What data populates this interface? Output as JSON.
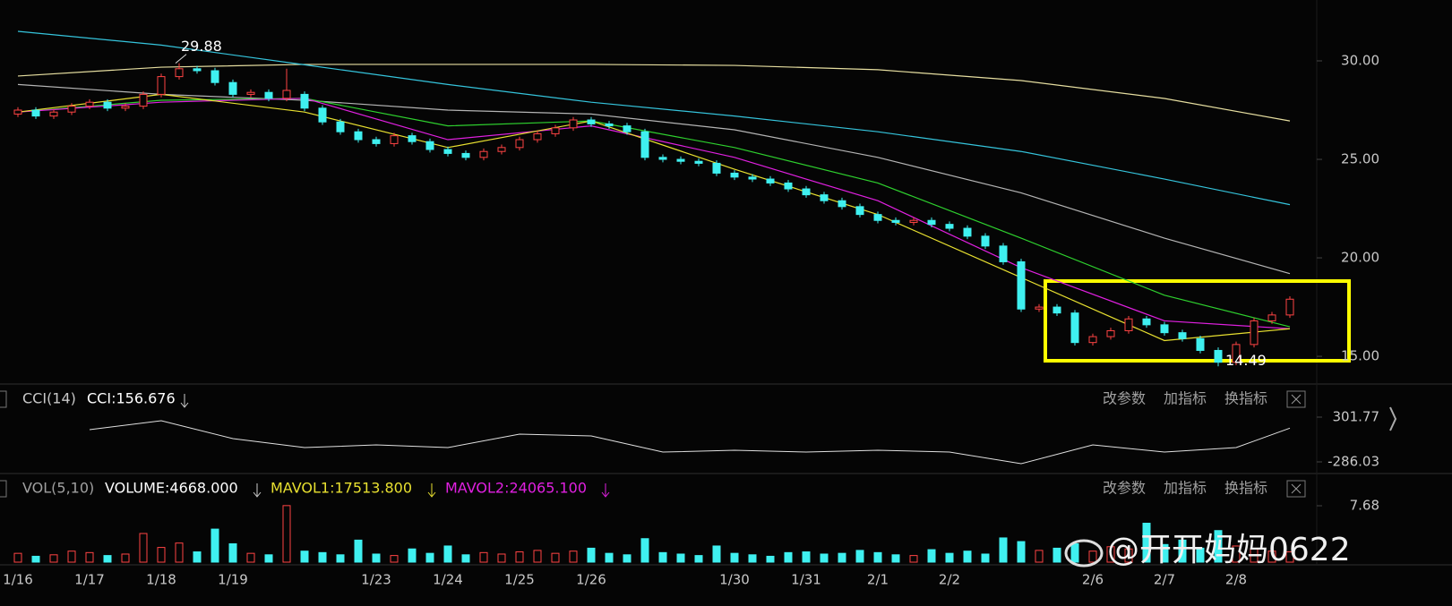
{
  "chart_data": {
    "type": "candlestick",
    "categories": [
      "1/16",
      null,
      null,
      null,
      "1/17",
      null,
      null,
      null,
      "1/18",
      null,
      null,
      null,
      "1/19",
      null,
      null,
      null,
      null,
      null,
      null,
      null,
      "1/23",
      null,
      null,
      null,
      "1/24",
      null,
      null,
      null,
      "1/25",
      null,
      null,
      null,
      "1/26",
      null,
      null,
      null,
      null,
      null,
      null,
      null,
      "1/30",
      null,
      null,
      null,
      "1/31",
      null,
      null,
      null,
      "2/1",
      null,
      null,
      null,
      "2/2",
      null,
      null,
      null,
      null,
      null,
      null,
      null,
      "2/6",
      null,
      null,
      null,
      "2/7",
      null,
      null,
      null,
      "2/8",
      null,
      null,
      null
    ],
    "open": [
      27.3,
      27.5,
      27.2,
      27.4,
      27.7,
      27.9,
      27.6,
      27.7,
      28.3,
      29.2,
      29.6,
      29.5,
      28.9,
      28.3,
      28.4,
      28.1,
      28.3,
      27.6,
      26.9,
      26.4,
      26.0,
      25.8,
      26.2,
      25.9,
      25.5,
      25.3,
      25.1,
      25.4,
      25.6,
      26.0,
      26.3,
      26.6,
      27.0,
      26.8,
      26.7,
      26.4,
      25.1,
      25.0,
      24.9,
      24.8,
      24.3,
      24.1,
      24.0,
      23.8,
      23.5,
      23.2,
      22.9,
      22.6,
      22.2,
      21.9,
      21.8,
      21.9,
      21.7,
      21.5,
      21.1,
      20.6,
      19.8,
      17.4,
      17.5,
      17.2,
      15.7,
      16.0,
      16.3,
      16.9,
      16.6,
      16.2,
      15.9,
      15.3,
      14.7,
      15.6,
      16.8,
      17.1
    ],
    "close": [
      27.5,
      27.2,
      27.4,
      27.7,
      27.9,
      27.6,
      27.7,
      28.3,
      29.2,
      29.6,
      29.5,
      28.9,
      28.3,
      28.4,
      28.1,
      28.5,
      27.6,
      26.9,
      26.4,
      26.0,
      25.8,
      26.2,
      25.9,
      25.5,
      25.3,
      25.1,
      25.4,
      25.6,
      26.0,
      26.3,
      26.6,
      27.0,
      26.8,
      26.7,
      26.4,
      25.1,
      25.0,
      24.9,
      24.8,
      24.3,
      24.1,
      24.0,
      23.8,
      23.5,
      23.2,
      22.9,
      22.6,
      22.2,
      21.9,
      21.8,
      21.9,
      21.7,
      21.5,
      21.1,
      20.6,
      19.8,
      17.4,
      17.5,
      17.2,
      15.7,
      16.0,
      16.3,
      16.9,
      16.6,
      16.2,
      15.9,
      15.3,
      14.7,
      15.6,
      16.8,
      17.1,
      17.9
    ],
    "high": [
      27.65,
      27.65,
      27.55,
      27.85,
      28.05,
      28.05,
      27.85,
      28.45,
      29.35,
      29.88,
      29.75,
      29.65,
      29.05,
      28.55,
      28.55,
      29.6,
      28.45,
      27.75,
      27.05,
      26.55,
      26.15,
      26.35,
      26.35,
      26.05,
      25.65,
      25.45,
      25.55,
      25.75,
      26.15,
      26.45,
      26.75,
      27.15,
      27.15,
      26.95,
      26.85,
      26.55,
      25.25,
      25.15,
      25.05,
      24.95,
      24.45,
      24.25,
      24.15,
      23.95,
      23.65,
      23.35,
      23.05,
      22.75,
      22.35,
      22.05,
      22.05,
      22.05,
      21.85,
      21.65,
      21.25,
      20.75,
      19.95,
      17.65,
      17.65,
      17.35,
      16.15,
      16.45,
      17.05,
      17.05,
      16.75,
      16.35,
      16.05,
      15.45,
      15.75,
      16.95,
      17.25,
      18.05
    ],
    "low": [
      27.15,
      27.05,
      27.05,
      27.25,
      27.55,
      27.45,
      27.45,
      27.55,
      28.15,
      29.05,
      29.35,
      28.75,
      28.15,
      28.15,
      27.95,
      27.95,
      27.45,
      26.75,
      26.25,
      25.85,
      25.65,
      25.65,
      25.75,
      25.35,
      25.15,
      24.95,
      24.95,
      25.25,
      25.45,
      25.85,
      26.15,
      26.45,
      26.65,
      26.55,
      26.25,
      24.95,
      24.85,
      24.75,
      24.65,
      24.15,
      23.95,
      23.85,
      23.65,
      23.35,
      23.05,
      22.75,
      22.45,
      22.05,
      21.75,
      21.65,
      21.65,
      21.55,
      21.35,
      20.95,
      20.45,
      19.65,
      17.25,
      17.25,
      17.05,
      15.55,
      15.55,
      15.85,
      16.15,
      16.45,
      16.05,
      15.75,
      15.15,
      14.49,
      14.55,
      15.45,
      16.65,
      16.95
    ],
    "up_color": "#ff4444",
    "down_color": "#3ff0f0",
    "ylim": [
      13.64,
      33.09
    ],
    "yticks": [
      {
        "value": 15,
        "label": "15.00"
      },
      {
        "value": 20,
        "label": "20.00"
      },
      {
        "value": 25,
        "label": "25.00"
      },
      {
        "value": 30,
        "label": "30.00"
      }
    ],
    "ma_index": [
      0,
      8,
      16,
      24,
      32,
      40,
      48,
      56,
      64,
      71
    ],
    "ma_series": [
      {
        "color": "#e6dea0",
        "values": [
          29.23,
          29.68,
          29.82,
          29.82,
          29.82,
          29.77,
          29.55,
          29.0,
          28.09,
          26.95
        ]
      },
      {
        "color": "#35c4dc",
        "values": [
          31.5,
          30.8,
          29.8,
          28.8,
          27.9,
          27.2,
          26.4,
          25.4,
          24.0,
          22.7
        ]
      },
      {
        "color": "#b4b4b4",
        "values": [
          28.8,
          28.3,
          28.0,
          27.5,
          27.3,
          26.5,
          25.1,
          23.3,
          21.0,
          19.2
        ]
      },
      {
        "color": "#2ed02e",
        "values": [
          27.4,
          28.0,
          28.1,
          26.7,
          26.95,
          25.6,
          23.8,
          21.0,
          18.1,
          16.5
        ]
      },
      {
        "color": "#e020e0",
        "values": [
          27.4,
          27.9,
          28.1,
          26.0,
          26.7,
          25.1,
          22.9,
          19.5,
          16.8,
          16.4
        ]
      },
      {
        "color": "#e8e030",
        "values": [
          27.4,
          28.3,
          27.4,
          25.6,
          26.95,
          24.5,
          22.2,
          19.0,
          15.8,
          16.4
        ]
      }
    ],
    "cci": {
      "label": "CCI(14)",
      "reading": "CCI:156.676",
      "color": "#e0e0e0",
      "index": [
        0,
        4,
        8,
        12,
        16,
        20,
        24,
        28,
        32,
        36,
        40,
        44,
        48,
        52,
        56,
        60,
        64,
        68,
        71
      ],
      "values": [
        null,
        137,
        255,
        20,
        -98,
        -63,
        -98,
        78,
        55,
        -157,
        -133,
        -157,
        -133,
        -157,
        -310,
        -63,
        -157,
        -98,
        157
      ],
      "ylim": [
        -427,
        431
      ],
      "yticks": [
        -286.03,
        301.77
      ]
    },
    "volume": {
      "label": "VOL(5,10)",
      "reading": "VOLUME:4668.000",
      "mavol1": "MAVOL1:17513.800",
      "mavol2": "MAVOL2:24065.100",
      "values": [
        1.2,
        0.8,
        1.0,
        1.5,
        1.3,
        0.9,
        1.1,
        3.9,
        2.0,
        2.6,
        1.4,
        4.5,
        2.5,
        1.2,
        1.0,
        7.7,
        1.5,
        1.3,
        1.0,
        3.0,
        1.1,
        0.9,
        1.8,
        1.2,
        2.2,
        1.0,
        1.3,
        1.1,
        1.4,
        1.6,
        1.2,
        1.5,
        1.9,
        1.2,
        1.0,
        3.2,
        1.3,
        1.1,
        0.9,
        2.2,
        1.2,
        1.0,
        0.8,
        1.3,
        1.4,
        1.1,
        1.2,
        1.6,
        1.3,
        1.0,
        0.9,
        1.7,
        1.2,
        1.5,
        1.1,
        3.3,
        2.8,
        1.6,
        1.9,
        2.5,
        1.5,
        2.1,
        1.8,
        5.3,
        2.4,
        3.0,
        1.9,
        4.3,
        2.2,
        1.8,
        1.5,
        1.4
      ],
      "ylim": [
        0,
        8.9
      ],
      "yticks": [
        7.68
      ]
    }
  },
  "toolbar": [
    "改参数",
    "加指标",
    "换指标"
  ],
  "watermark": "@开开妈妈0622"
}
